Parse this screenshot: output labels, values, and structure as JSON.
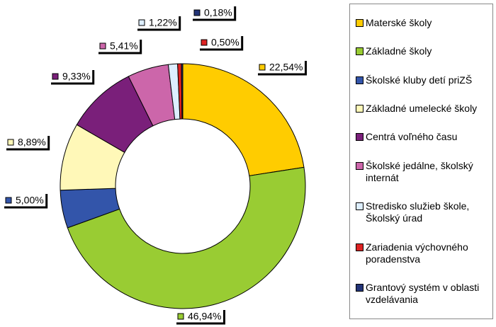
{
  "chart_data": {
    "type": "donut",
    "categories": [
      "Materské školy",
      "Základné školy",
      "Školské kluby detí priZŠ",
      "Základné umelecké školy",
      "Centrá voľného času",
      "Školské jedálne, školský internát",
      "Stredisko služieb škole, Školský úrad",
      "Zariadenia výchovného poradenstva",
      "Grantový systém v oblasti vzdelávania"
    ],
    "values": [
      22.54,
      46.94,
      5.0,
      8.89,
      9.33,
      5.41,
      1.22,
      0.5,
      0.18
    ],
    "value_labels": [
      "22,54%",
      "46,94%",
      "5,00%",
      "8,89%",
      "9,33%",
      "5,41%",
      "1,22%",
      "0,50%",
      "0,18%"
    ],
    "colors": [
      "#ffcc00",
      "#99cc33",
      "#3355aa",
      "#fff8b8",
      "#7a1f7a",
      "#cc66aa",
      "#ddeeff",
      "#dd2222",
      "#223377"
    ],
    "legend": "right"
  }
}
